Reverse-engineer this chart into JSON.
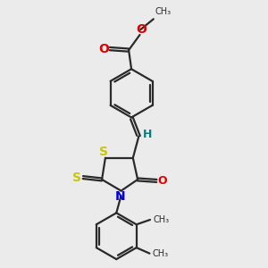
{
  "bg_color": "#ebebeb",
  "bond_color": "#2a2a2a",
  "S_color": "#c8c800",
  "N_color": "#0000e0",
  "O_color": "#e00000",
  "H_color": "#008080",
  "C_color": "#2a2a2a",
  "figsize": [
    3.0,
    3.0
  ],
  "dpi": 100,
  "xlim": [
    0,
    10
  ],
  "ylim": [
    0,
    10
  ]
}
